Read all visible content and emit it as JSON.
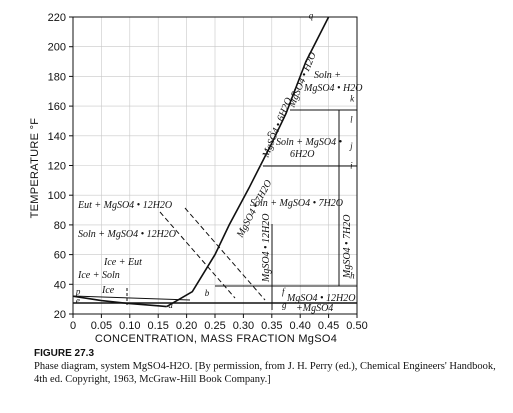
{
  "chart_data": {
    "type": "line",
    "xlabel": "CONCENTRATION, MASS FRACTION MgSO4",
    "ylabel": "TEMPERATURE °F",
    "xlim": [
      0,
      0.5
    ],
    "ylim": [
      20,
      220
    ],
    "x_ticks": [
      "0",
      "0.05",
      "0.10",
      "0.15",
      "0.20",
      "0.25",
      "0.30",
      "0.35",
      "0.40",
      "0.45",
      "0.50"
    ],
    "y_ticks": [
      "20",
      "40",
      "60",
      "80",
      "100",
      "120",
      "140",
      "160",
      "180",
      "200",
      "220"
    ],
    "grid": true,
    "series": [
      {
        "values": [
          [
            0.0,
            32
          ],
          [
            0.05,
            29
          ],
          [
            0.1,
            27
          ],
          [
            0.15,
            25.5
          ],
          [
            0.165,
            25
          ]
        ]
      },
      {
        "values": [
          [
            0.165,
            25
          ],
          [
            0.21,
            35
          ],
          [
            0.25,
            60
          ],
          [
            0.275,
            80
          ],
          [
            0.31,
            105
          ],
          [
            0.33,
            120
          ]
        ]
      },
      {
        "values": [
          [
            0.33,
            120
          ],
          [
            0.35,
            135
          ],
          [
            0.375,
            155
          ],
          [
            0.4,
            180
          ],
          [
            0.41,
            190
          ],
          [
            0.45,
            220
          ]
        ]
      }
    ],
    "point_labels": [
      {
        "text": "p",
        "x": 0.005,
        "y": 33
      },
      {
        "text": "e",
        "x": 0.005,
        "y": 27
      },
      {
        "text": "a",
        "x": 0.168,
        "y": 24
      },
      {
        "text": "b",
        "x": 0.232,
        "y": 32
      },
      {
        "text": "c",
        "x": 0.342,
        "y": 140
      },
      {
        "text": "d",
        "x": 0.384,
        "y": 167
      },
      {
        "text": "q",
        "x": 0.415,
        "y": 219
      },
      {
        "text": "k",
        "x": 0.488,
        "y": 163
      },
      {
        "text": "l",
        "x": 0.488,
        "y": 149
      },
      {
        "text": "j",
        "x": 0.488,
        "y": 131
      },
      {
        "text": "i",
        "x": 0.488,
        "y": 118
      },
      {
        "text": "h",
        "x": 0.488,
        "y": 44
      },
      {
        "text": "f",
        "x": 0.368,
        "y": 33
      },
      {
        "text": "g",
        "x": 0.368,
        "y": 24
      }
    ],
    "annotations": [
      "Soln +",
      "MgSO4 • H2O",
      "MgSO4 • H2O",
      "Soln + MgSO4 •",
      "6H2O",
      "MgSO4 • 6H2O",
      "Soln + MgSO4 • 7H2O",
      "MgSO4 • 7H2O",
      "MgSO4 • 7H2O",
      "Eut + MgSO4 • 12H2O",
      "Soln + MgSO4 • 12H2O",
      "Ice + Eut",
      "Ice + Soln",
      "Ice",
      "MgSO4 • 12H2O",
      "MgSO4 • 12H2O",
      "+MgSO4"
    ]
  },
  "caption": {
    "figure": "FIGURE 27.3",
    "text": "Phase diagram, system MgSO4-H2O. [By permission, from J. H. Perry (ed.), Chemical Engineers' Handbook, 4th ed. Copyright, 1963, McGraw-Hill Book Company.]"
  }
}
